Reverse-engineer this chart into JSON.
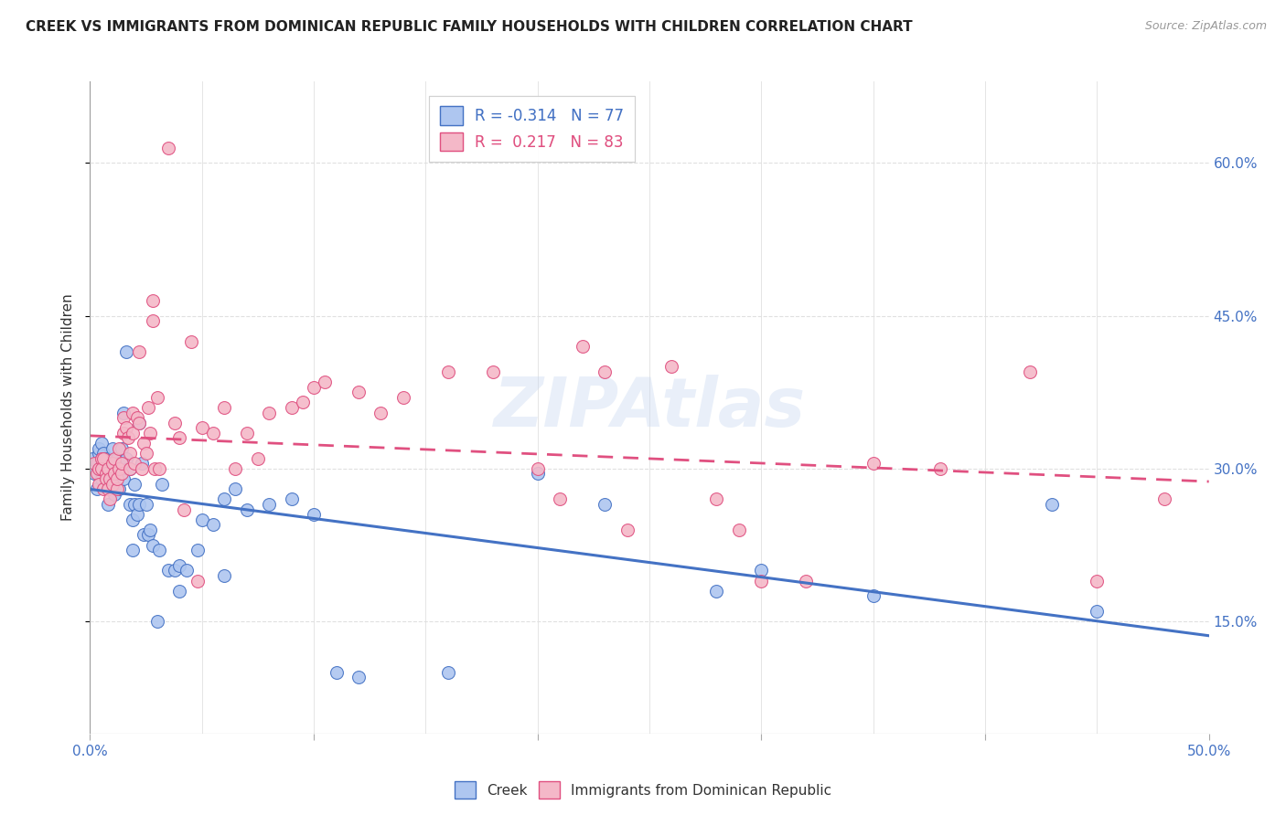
{
  "title": "CREEK VS IMMIGRANTS FROM DOMINICAN REPUBLIC FAMILY HOUSEHOLDS WITH CHILDREN CORRELATION CHART",
  "source": "Source: ZipAtlas.com",
  "ylabel": "Family Households with Children",
  "xlim": [
    0.0,
    0.5
  ],
  "ylim": [
    0.04,
    0.68
  ],
  "xticks": [
    0.0,
    0.1,
    0.2,
    0.3,
    0.4,
    0.5
  ],
  "xticklabels": [
    "0.0%",
    "",
    "",
    "",
    "",
    "50.0%"
  ],
  "yticks": [
    0.15,
    0.3,
    0.45,
    0.6
  ],
  "yticklabels": [
    "15.0%",
    "30.0%",
    "45.0%",
    "60.0%"
  ],
  "creek_color": "#aec6f0",
  "dr_color": "#f4b8c8",
  "creek_line_color": "#4472c4",
  "dr_line_color": "#e05080",
  "creek_R": -0.314,
  "creek_N": 77,
  "dr_R": 0.217,
  "dr_N": 83,
  "background_color": "#ffffff",
  "grid_color": "#e0e0e0",
  "creek_scatter": [
    [
      0.001,
      0.31
    ],
    [
      0.002,
      0.295
    ],
    [
      0.003,
      0.305
    ],
    [
      0.003,
      0.28
    ],
    [
      0.004,
      0.315
    ],
    [
      0.004,
      0.3
    ],
    [
      0.004,
      0.32
    ],
    [
      0.005,
      0.31
    ],
    [
      0.005,
      0.29
    ],
    [
      0.005,
      0.325
    ],
    [
      0.006,
      0.305
    ],
    [
      0.006,
      0.315
    ],
    [
      0.007,
      0.3
    ],
    [
      0.007,
      0.29
    ],
    [
      0.007,
      0.31
    ],
    [
      0.008,
      0.265
    ],
    [
      0.008,
      0.295
    ],
    [
      0.008,
      0.31
    ],
    [
      0.009,
      0.285
    ],
    [
      0.009,
      0.3
    ],
    [
      0.01,
      0.32
    ],
    [
      0.01,
      0.29
    ],
    [
      0.011,
      0.3
    ],
    [
      0.011,
      0.275
    ],
    [
      0.012,
      0.31
    ],
    [
      0.012,
      0.295
    ],
    [
      0.013,
      0.305
    ],
    [
      0.013,
      0.28
    ],
    [
      0.014,
      0.32
    ],
    [
      0.015,
      0.29
    ],
    [
      0.015,
      0.355
    ],
    [
      0.016,
      0.31
    ],
    [
      0.016,
      0.415
    ],
    [
      0.017,
      0.3
    ],
    [
      0.018,
      0.265
    ],
    [
      0.018,
      0.3
    ],
    [
      0.019,
      0.25
    ],
    [
      0.019,
      0.22
    ],
    [
      0.02,
      0.285
    ],
    [
      0.02,
      0.265
    ],
    [
      0.021,
      0.255
    ],
    [
      0.022,
      0.265
    ],
    [
      0.022,
      0.345
    ],
    [
      0.023,
      0.305
    ],
    [
      0.024,
      0.235
    ],
    [
      0.025,
      0.265
    ],
    [
      0.026,
      0.235
    ],
    [
      0.027,
      0.24
    ],
    [
      0.028,
      0.225
    ],
    [
      0.03,
      0.15
    ],
    [
      0.031,
      0.22
    ],
    [
      0.032,
      0.285
    ],
    [
      0.035,
      0.2
    ],
    [
      0.038,
      0.2
    ],
    [
      0.04,
      0.205
    ],
    [
      0.04,
      0.18
    ],
    [
      0.043,
      0.2
    ],
    [
      0.048,
      0.22
    ],
    [
      0.05,
      0.25
    ],
    [
      0.055,
      0.245
    ],
    [
      0.06,
      0.27
    ],
    [
      0.06,
      0.195
    ],
    [
      0.065,
      0.28
    ],
    [
      0.07,
      0.26
    ],
    [
      0.08,
      0.265
    ],
    [
      0.09,
      0.27
    ],
    [
      0.1,
      0.255
    ],
    [
      0.11,
      0.1
    ],
    [
      0.12,
      0.095
    ],
    [
      0.16,
      0.1
    ],
    [
      0.2,
      0.295
    ],
    [
      0.23,
      0.265
    ],
    [
      0.28,
      0.18
    ],
    [
      0.3,
      0.2
    ],
    [
      0.35,
      0.175
    ],
    [
      0.43,
      0.265
    ],
    [
      0.45,
      0.16
    ]
  ],
  "dr_scatter": [
    [
      0.002,
      0.305
    ],
    [
      0.003,
      0.295
    ],
    [
      0.004,
      0.3
    ],
    [
      0.004,
      0.285
    ],
    [
      0.005,
      0.31
    ],
    [
      0.005,
      0.3
    ],
    [
      0.006,
      0.28
    ],
    [
      0.006,
      0.31
    ],
    [
      0.007,
      0.295
    ],
    [
      0.007,
      0.29
    ],
    [
      0.008,
      0.3
    ],
    [
      0.008,
      0.28
    ],
    [
      0.009,
      0.27
    ],
    [
      0.009,
      0.29
    ],
    [
      0.01,
      0.285
    ],
    [
      0.01,
      0.305
    ],
    [
      0.011,
      0.295
    ],
    [
      0.011,
      0.31
    ],
    [
      0.012,
      0.28
    ],
    [
      0.012,
      0.29
    ],
    [
      0.013,
      0.32
    ],
    [
      0.013,
      0.3
    ],
    [
      0.014,
      0.295
    ],
    [
      0.014,
      0.305
    ],
    [
      0.015,
      0.335
    ],
    [
      0.015,
      0.35
    ],
    [
      0.016,
      0.34
    ],
    [
      0.017,
      0.33
    ],
    [
      0.018,
      0.315
    ],
    [
      0.018,
      0.3
    ],
    [
      0.019,
      0.335
    ],
    [
      0.019,
      0.355
    ],
    [
      0.02,
      0.305
    ],
    [
      0.021,
      0.35
    ],
    [
      0.022,
      0.345
    ],
    [
      0.022,
      0.415
    ],
    [
      0.023,
      0.3
    ],
    [
      0.024,
      0.325
    ],
    [
      0.025,
      0.315
    ],
    [
      0.026,
      0.36
    ],
    [
      0.027,
      0.335
    ],
    [
      0.028,
      0.445
    ],
    [
      0.028,
      0.465
    ],
    [
      0.029,
      0.3
    ],
    [
      0.03,
      0.37
    ],
    [
      0.031,
      0.3
    ],
    [
      0.035,
      0.615
    ],
    [
      0.038,
      0.345
    ],
    [
      0.04,
      0.33
    ],
    [
      0.042,
      0.26
    ],
    [
      0.045,
      0.425
    ],
    [
      0.048,
      0.19
    ],
    [
      0.05,
      0.34
    ],
    [
      0.055,
      0.335
    ],
    [
      0.06,
      0.36
    ],
    [
      0.065,
      0.3
    ],
    [
      0.07,
      0.335
    ],
    [
      0.075,
      0.31
    ],
    [
      0.08,
      0.355
    ],
    [
      0.09,
      0.36
    ],
    [
      0.095,
      0.365
    ],
    [
      0.1,
      0.38
    ],
    [
      0.105,
      0.385
    ],
    [
      0.12,
      0.375
    ],
    [
      0.13,
      0.355
    ],
    [
      0.14,
      0.37
    ],
    [
      0.16,
      0.395
    ],
    [
      0.18,
      0.395
    ],
    [
      0.2,
      0.3
    ],
    [
      0.21,
      0.27
    ],
    [
      0.22,
      0.42
    ],
    [
      0.23,
      0.395
    ],
    [
      0.24,
      0.24
    ],
    [
      0.26,
      0.4
    ],
    [
      0.28,
      0.27
    ],
    [
      0.29,
      0.24
    ],
    [
      0.3,
      0.19
    ],
    [
      0.32,
      0.19
    ],
    [
      0.35,
      0.305
    ],
    [
      0.38,
      0.3
    ],
    [
      0.42,
      0.395
    ],
    [
      0.45,
      0.19
    ],
    [
      0.48,
      0.27
    ]
  ]
}
